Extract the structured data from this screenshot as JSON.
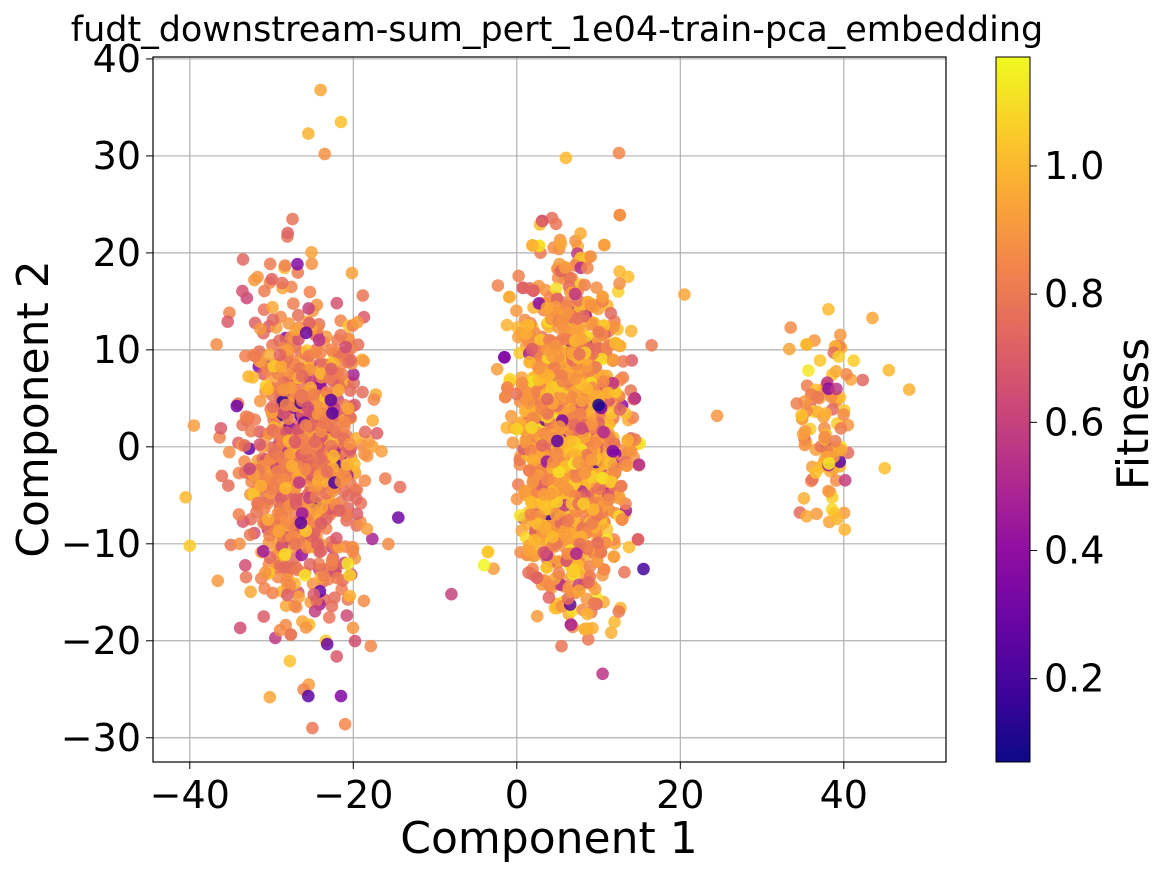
{
  "chart_data": {
    "type": "scatter",
    "title": "fudt_downstream-sum_pert_1e04-train-pca_embedding",
    "xlabel": "Component 1",
    "ylabel": "Component 2",
    "xlim": [
      -44.5,
      52.5
    ],
    "ylim": [
      -32.5,
      40.2
    ],
    "xticks": [
      -40,
      -20,
      0,
      20,
      40
    ],
    "xtick_labels": [
      "−40",
      "−20",
      "0",
      "20",
      "40"
    ],
    "yticks": [
      -30,
      -20,
      -10,
      0,
      10,
      20,
      30,
      40
    ],
    "ytick_labels": [
      "−30",
      "−20",
      "−10",
      "0",
      "10",
      "20",
      "30",
      "40"
    ],
    "grid": true,
    "colormap": "plasma",
    "colorbar": {
      "label": "Fitness",
      "range": [
        0.07,
        1.17
      ],
      "ticks": [
        0.2,
        0.4,
        0.6,
        0.8,
        1.0
      ],
      "tick_labels": [
        "0.2",
        "0.4",
        "0.6",
        "0.8",
        "1.0"
      ]
    },
    "clusters": [
      {
        "name_hint": "left",
        "center": [
          -26,
          -1
        ],
        "spread": [
          6.5,
          11
        ],
        "count": 900,
        "fitness_mean": 0.82
      },
      {
        "name_hint": "middle",
        "center": [
          6.5,
          1
        ],
        "spread": [
          5.5,
          10.5
        ],
        "count": 1800,
        "fitness_mean": 0.9
      },
      {
        "name_hint": "right",
        "center": [
          37.5,
          2
        ],
        "spread": [
          3.5,
          6.5
        ],
        "count": 110,
        "fitness_mean": 0.93
      }
    ],
    "points": [
      {
        "x": -24,
        "y": 36.8,
        "c": 0.95
      },
      {
        "x": -25.5,
        "y": 32.3,
        "c": 0.98
      },
      {
        "x": -21.5,
        "y": 33.5,
        "c": 1.02
      },
      {
        "x": -23.5,
        "y": 30.2,
        "c": 0.88
      },
      {
        "x": 6,
        "y": 29.8,
        "c": 1.0
      },
      {
        "x": 12.5,
        "y": 30.3,
        "c": 0.85
      },
      {
        "x": 43.5,
        "y": 13.3,
        "c": 0.95
      },
      {
        "x": 48,
        "y": 5.9,
        "c": 0.98
      },
      {
        "x": 45.5,
        "y": 7.9,
        "c": 1.0
      },
      {
        "x": 45,
        "y": -2.2,
        "c": 1.02
      },
      {
        "x": 24.5,
        "y": 3.2,
        "c": 0.9
      },
      {
        "x": 20.5,
        "y": 15.7,
        "c": 0.95
      },
      {
        "x": -40.5,
        "y": -5.2,
        "c": 1.0
      },
      {
        "x": -40,
        "y": -10.2,
        "c": 1.05
      },
      {
        "x": -39.5,
        "y": 2.2,
        "c": 0.92
      },
      {
        "x": -21,
        "y": -28.6,
        "c": 0.85
      },
      {
        "x": -25,
        "y": -29.0,
        "c": 0.8
      },
      {
        "x": 10,
        "y": 4.3,
        "c": 0.08
      },
      {
        "x": -4,
        "y": -12.2,
        "c": 1.16
      },
      {
        "x": -25.5,
        "y": -25.7,
        "c": 0.25
      },
      {
        "x": -21.5,
        "y": -25.7,
        "c": 0.35
      },
      {
        "x": 10.5,
        "y": -23.4,
        "c": 0.55
      },
      {
        "x": -8,
        "y": -15.2,
        "c": 0.6
      },
      {
        "x": -14.5,
        "y": -7.3,
        "c": 0.3
      },
      {
        "x": 15.5,
        "y": -12.6,
        "c": 0.2
      }
    ]
  }
}
